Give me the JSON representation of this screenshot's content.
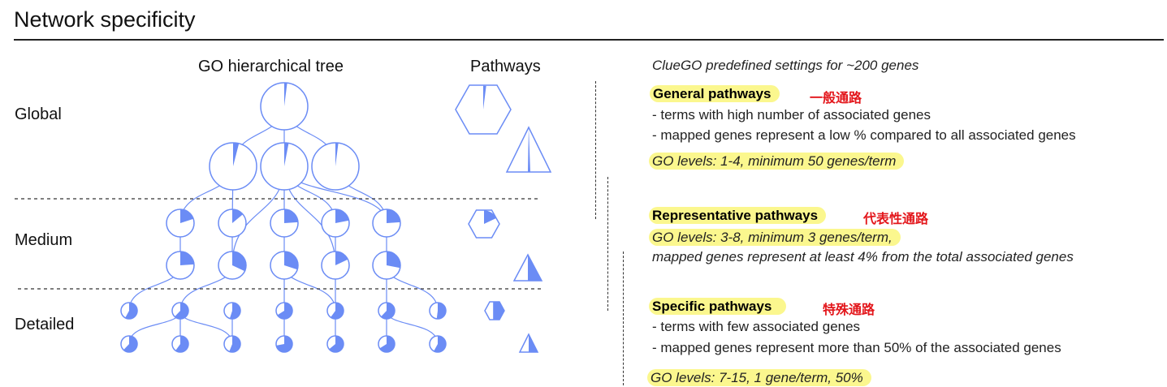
{
  "title": "Network specificity",
  "columns": {
    "tree": "GO hierarchical tree",
    "pathways": "Pathways"
  },
  "levels": [
    "Global",
    "Medium",
    "Detailed"
  ],
  "colors": {
    "accent": "#6b8cf5",
    "fill": "#ffffff",
    "highlight": "#fbf78e",
    "chinese": "#e3161b"
  },
  "panel": {
    "intro": "ClueGO predefined settings for ~200 genes",
    "sections": [
      {
        "heading": "General pathways",
        "chinese": "一般通路",
        "bullets": [
          "- terms with high number of associated genes",
          "- mapped genes represent a low % compared to all associated genes"
        ],
        "go_levels": "GO levels: 1-4, minimum 50 genes/term"
      },
      {
        "heading": "Representative pathways",
        "chinese": "代表性通路",
        "go_levels": "GO levels: 3-8, minimum 3 genes/term,",
        "note": "mapped genes represent at least 4% from the total associated genes"
      },
      {
        "heading": "Specific pathways",
        "chinese": "特殊通路",
        "bullets": [
          "- terms with few associated genes",
          "- mapped genes represent more than 50% of the associated genes"
        ],
        "go_levels": "GO levels: 7-15, 1 gene/term, 50%"
      }
    ]
  }
}
